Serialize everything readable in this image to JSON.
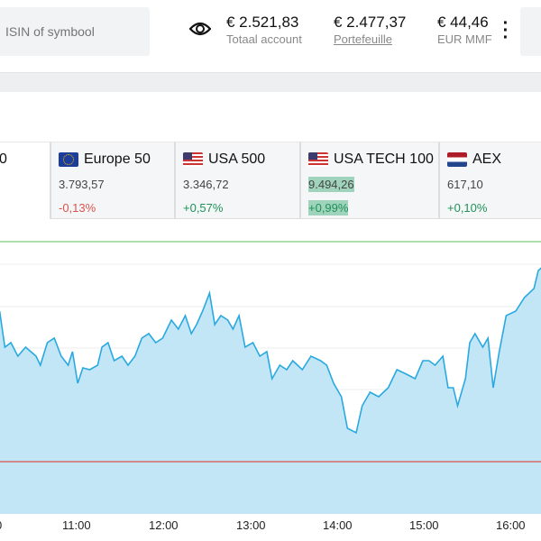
{
  "search": {
    "placeholder": "ISIN of symbool"
  },
  "stats": [
    {
      "value": "€ 2.521,83",
      "label": "Totaal account"
    },
    {
      "value": "€ 2.477,37",
      "label": "Portefeuille"
    },
    {
      "value": "€ 44,46",
      "label": "EUR MMF"
    }
  ],
  "first_tab_partial": "0",
  "indices": [
    {
      "name": "Europe 50",
      "price": "3.793,57",
      "change": "-0,13%",
      "dir": "down",
      "flag": "eu"
    },
    {
      "name": "USA 500",
      "price": "3.346,72",
      "change": "+0,57%",
      "dir": "up",
      "flag": "us"
    },
    {
      "name": "USA TECH 100",
      "price": "9.494,26",
      "change": "+0,99%",
      "dir": "up",
      "flag": "us",
      "highlighted": true
    },
    {
      "name": "AEX",
      "price": "617,10",
      "change": "+0,10%",
      "dir": "up",
      "flag": "nl"
    }
  ],
  "colors": {
    "up": "#1e9158",
    "down": "#d9534f",
    "area": "#c2e6f6",
    "line": "#29a9e0",
    "upper": "#7ec97e",
    "lower": "#d9534f"
  },
  "chart_data": {
    "type": "area",
    "x_unit": "hour",
    "x_ticks": [
      "0",
      "11:00",
      "12:00",
      "13:00",
      "14:00",
      "15:00",
      "16:00"
    ],
    "upper_ref": 332,
    "lower_ref": 88,
    "points": [
      [
        10.11,
        255
      ],
      [
        10.17,
        215
      ],
      [
        10.24,
        220
      ],
      [
        10.32,
        205
      ],
      [
        10.41,
        215
      ],
      [
        10.53,
        205
      ],
      [
        10.58,
        195
      ],
      [
        10.66,
        220
      ],
      [
        10.74,
        225
      ],
      [
        10.82,
        205
      ],
      [
        10.9,
        195
      ],
      [
        10.95,
        210
      ],
      [
        11.01,
        175
      ],
      [
        11.07,
        192
      ],
      [
        11.15,
        190
      ],
      [
        11.24,
        195
      ],
      [
        11.29,
        215
      ],
      [
        11.36,
        220
      ],
      [
        11.43,
        200
      ],
      [
        11.52,
        205
      ],
      [
        11.59,
        195
      ],
      [
        11.67,
        205
      ],
      [
        11.75,
        225
      ],
      [
        11.83,
        230
      ],
      [
        11.91,
        220
      ],
      [
        11.99,
        225
      ],
      [
        12.09,
        245
      ],
      [
        12.17,
        235
      ],
      [
        12.25,
        250
      ],
      [
        12.32,
        230
      ],
      [
        12.38,
        240
      ],
      [
        12.45,
        255
      ],
      [
        12.53,
        275
      ],
      [
        12.59,
        240
      ],
      [
        12.66,
        250
      ],
      [
        12.74,
        245
      ],
      [
        12.8,
        235
      ],
      [
        12.87,
        250
      ],
      [
        12.94,
        215
      ],
      [
        13.03,
        220
      ],
      [
        13.11,
        205
      ],
      [
        13.19,
        210
      ],
      [
        13.25,
        180
      ],
      [
        13.34,
        195
      ],
      [
        13.42,
        190
      ],
      [
        13.49,
        200
      ],
      [
        13.6,
        190
      ],
      [
        13.7,
        205
      ],
      [
        13.81,
        200
      ],
      [
        13.88,
        195
      ],
      [
        13.96,
        175
      ],
      [
        14.05,
        160
      ],
      [
        14.12,
        125
      ],
      [
        14.22,
        120
      ],
      [
        14.29,
        150
      ],
      [
        14.38,
        165
      ],
      [
        14.48,
        160
      ],
      [
        14.59,
        170
      ],
      [
        14.69,
        190
      ],
      [
        14.8,
        185
      ],
      [
        14.9,
        180
      ],
      [
        14.99,
        200
      ],
      [
        15.06,
        200
      ],
      [
        15.13,
        195
      ],
      [
        15.22,
        205
      ],
      [
        15.28,
        170
      ],
      [
        15.34,
        170
      ],
      [
        15.39,
        150
      ],
      [
        15.48,
        180
      ],
      [
        15.53,
        220
      ],
      [
        15.59,
        230
      ],
      [
        15.68,
        215
      ],
      [
        15.74,
        225
      ],
      [
        15.8,
        170
      ],
      [
        15.87,
        210
      ],
      [
        15.95,
        250
      ],
      [
        16.06,
        255
      ],
      [
        16.16,
        270
      ],
      [
        16.27,
        280
      ],
      [
        16.32,
        300
      ],
      [
        16.38,
        305
      ]
    ]
  }
}
